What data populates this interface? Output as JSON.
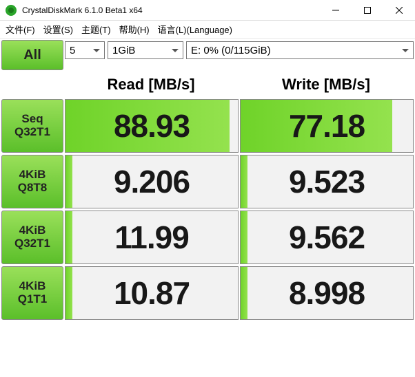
{
  "window": {
    "title": "CrystalDiskMark 6.1.0 Beta1 x64",
    "icon_colors": {
      "primary": "#2aa52a",
      "secondary": "#1a7a1a"
    }
  },
  "menu": {
    "file": "文件(F)",
    "settings": "设置(S)",
    "theme": "主题(T)",
    "help": "帮助(H)",
    "language": "语言(L)(Language)"
  },
  "controls": {
    "all_label": "All",
    "count": "5",
    "size": "1GiB",
    "drive": "E: 0% (0/115GiB)"
  },
  "headers": {
    "read": "Read [MB/s]",
    "write": "Write [MB/s]"
  },
  "rows": [
    {
      "label1": "Seq",
      "label2": "Q32T1",
      "read": "88.93",
      "read_pct": 95,
      "write": "77.18",
      "write_pct": 88
    },
    {
      "label1": "4KiB",
      "label2": "Q8T8",
      "read": "9.206",
      "read_pct": 4,
      "write": "9.523",
      "write_pct": 4
    },
    {
      "label1": "4KiB",
      "label2": "Q32T1",
      "read": "11.99",
      "read_pct": 4,
      "write": "9.562",
      "write_pct": 4
    },
    {
      "label1": "4KiB",
      "label2": "Q1T1",
      "read": "10.87",
      "read_pct": 4,
      "write": "8.998",
      "write_pct": 4
    }
  ],
  "colors": {
    "button_gradient_top": "#9ae05a",
    "button_gradient_bottom": "#5bbf2a",
    "bar_gradient_left": "#6fd329",
    "bar_gradient_right": "#94e24e",
    "cell_bg": "#f2f2f2",
    "border": "#888888",
    "text": "#181818"
  }
}
